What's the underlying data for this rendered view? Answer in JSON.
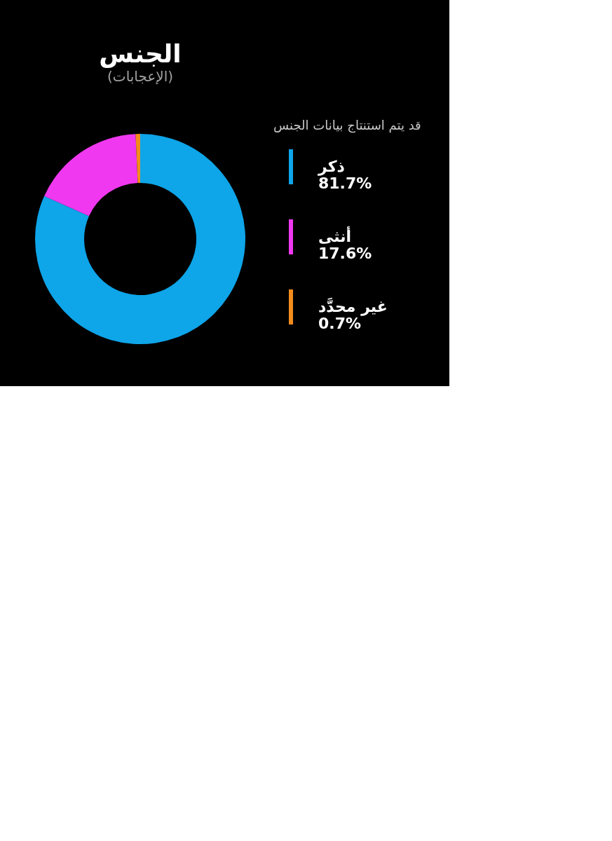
{
  "chart_data": {
    "type": "donut",
    "title": "الجنس",
    "subtitle": "(الإعجابات)",
    "legend_title": "قد يتم استنتاج بيانات الجنس",
    "categories": [
      "ذكر",
      "أنثى",
      "غير محدَّد"
    ],
    "values": [
      81.7,
      17.6,
      0.7
    ],
    "colors": [
      "#0ea5e9",
      "#f038f0",
      "#f28c1c"
    ],
    "value_labels": [
      "81.7%",
      "17.6%",
      "0.7%"
    ],
    "legend": "right"
  }
}
